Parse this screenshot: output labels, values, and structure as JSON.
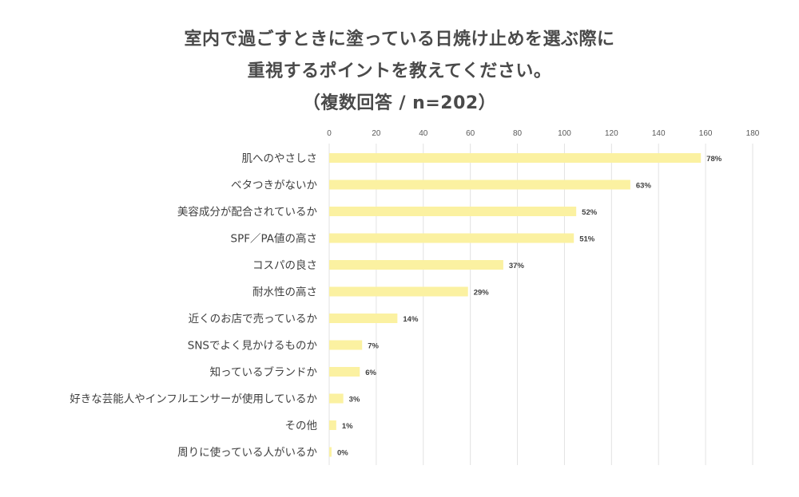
{
  "chart_data": {
    "type": "bar",
    "orientation": "horizontal",
    "title_lines": [
      "室内で過ごすときに塗っている日焼け止めを選ぶ際に",
      "重視するポイントを教えてください。",
      "（複数回答 / n=202）"
    ],
    "categories": [
      "肌へのやさしさ",
      "ベタつきがないか",
      "美容成分が配合されているか",
      "SPF／PA値の高さ",
      "コスパの良さ",
      "耐水性の高さ",
      "近くのお店で売っているか",
      "SNSでよく見かけるものか",
      "知っているブランドか",
      "好きな芸能人やインフルエンサーが使用しているか",
      "その他",
      "周りに使っている人がいるか"
    ],
    "values": [
      158,
      128,
      105,
      104,
      74,
      59,
      29,
      14,
      13,
      6,
      3,
      1
    ],
    "labels": [
      "78%",
      "63%",
      "52%",
      "51%",
      "37%",
      "29%",
      "14%",
      "7%",
      "6%",
      "3%",
      "1%",
      "0%"
    ],
    "xlim": [
      0,
      180
    ],
    "ticks": [
      0,
      20,
      40,
      60,
      80,
      100,
      120,
      140,
      160,
      180
    ],
    "grid": true,
    "xaxis_position": "top",
    "bar_color": "#fbf1a1",
    "grid_color": "#e2e2e2"
  }
}
